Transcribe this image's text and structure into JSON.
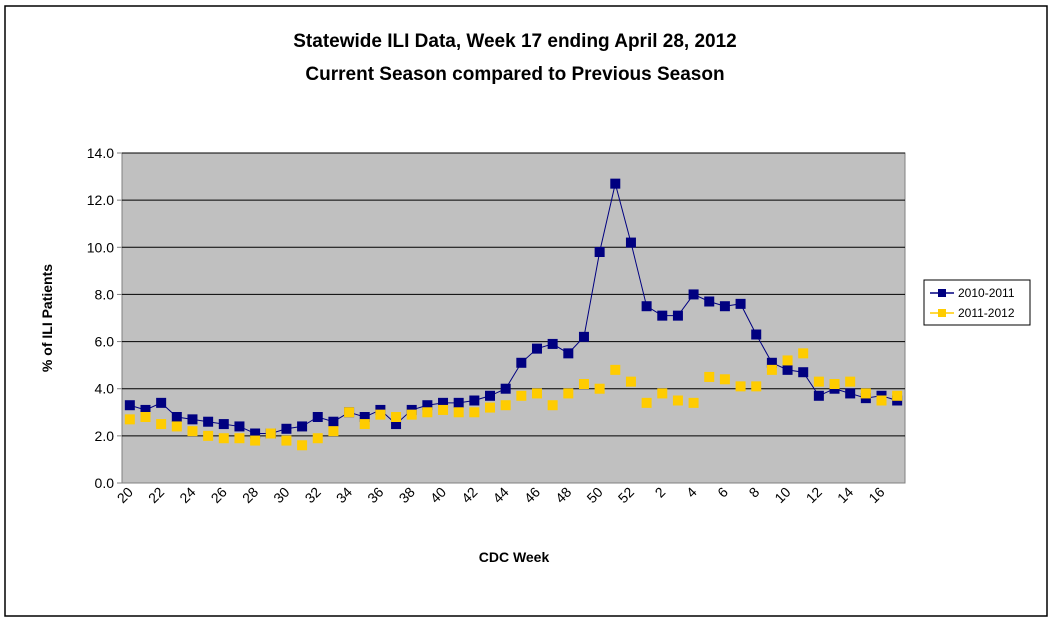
{
  "chart_data": {
    "type": "line",
    "title": "Statewide ILI Data, Week 17 ending April 28, 2012",
    "subtitle": "Current Season compared to Previous Season",
    "x_label": "CDC Week",
    "y_label": "% of ILI Patients",
    "categories": [
      "20",
      null,
      "22",
      null,
      "24",
      null,
      "26",
      null,
      "28",
      null,
      "30",
      null,
      "32",
      null,
      "34",
      null,
      "36",
      null,
      "38",
      null,
      "40",
      null,
      "42",
      null,
      "44",
      null,
      "46",
      null,
      "48",
      null,
      "50",
      null,
      "52",
      null,
      "2",
      null,
      "4",
      null,
      "6",
      null,
      "8",
      null,
      "10",
      null,
      "12",
      null,
      "14",
      null,
      "16",
      null
    ],
    "series": [
      {
        "name": "2010-2011",
        "color": "#000080",
        "line": true,
        "values": [
          3.3,
          3.1,
          3.4,
          2.8,
          2.7,
          2.6,
          2.5,
          2.4,
          2.1,
          2.1,
          2.3,
          2.4,
          2.8,
          2.6,
          3.0,
          2.8,
          3.1,
          2.5,
          3.1,
          3.3,
          3.4,
          3.4,
          3.5,
          3.7,
          4.0,
          5.1,
          5.7,
          5.9,
          5.5,
          6.2,
          9.8,
          12.7,
          10.2,
          7.5,
          7.1,
          7.1,
          8.0,
          7.7,
          7.5,
          7.6,
          6.3,
          5.1,
          4.8,
          4.7,
          3.7,
          4.0,
          3.8,
          3.6,
          3.7,
          3.5
        ]
      },
      {
        "name": "2011-2012",
        "color": "#FFCC00",
        "line": false,
        "values": [
          2.7,
          2.8,
          2.5,
          2.4,
          2.2,
          2.0,
          1.9,
          1.9,
          1.8,
          2.1,
          1.8,
          1.6,
          1.9,
          2.2,
          3.0,
          2.5,
          2.9,
          2.8,
          2.9,
          3.0,
          3.1,
          3.0,
          3.0,
          3.2,
          3.3,
          3.7,
          3.8,
          3.3,
          3.8,
          4.2,
          4.0,
          4.8,
          4.3,
          3.4,
          3.8,
          3.5,
          3.4,
          4.5,
          4.4,
          4.1,
          4.1,
          4.8,
          5.2,
          5.5,
          4.3,
          4.2,
          4.3,
          3.8,
          3.5,
          3.7
        ]
      }
    ],
    "ylim": [
      0,
      14
    ],
    "yticks": [
      {
        "value": 0,
        "label": "0.0"
      },
      {
        "value": 2,
        "label": "2.0"
      },
      {
        "value": 4,
        "label": "4.0"
      },
      {
        "value": 6,
        "label": "6.0"
      },
      {
        "value": 8,
        "label": "8.0"
      },
      {
        "value": 10,
        "label": "10.0"
      },
      {
        "value": 12,
        "label": "12.0"
      },
      {
        "value": 14,
        "label": "14.0"
      }
    ],
    "grid": true,
    "plot_background": "#C0C0C0",
    "legend": "right"
  }
}
